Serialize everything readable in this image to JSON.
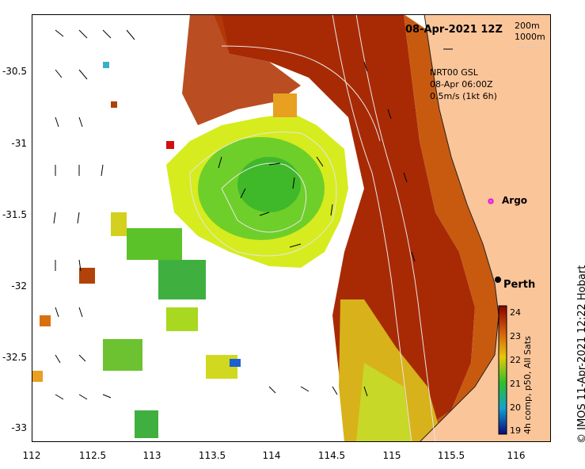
{
  "map": {
    "title": "08-Apr-2021 12Z",
    "depth_contours": [
      "200m",
      "1000m"
    ],
    "current_legend": {
      "line1": "NRT00 GSL",
      "line2": "08-Apr 06:00Z",
      "line3": "0.5m/s (1kt 6h)"
    },
    "latitude_ticks": [
      "-30.5",
      "-31",
      "-31.5",
      "-32",
      "-32.5",
      "-33"
    ],
    "longitude_ticks": [
      "112",
      "112.5",
      "113",
      "113.5",
      "114",
      "114.5",
      "115",
      "115.5",
      "116"
    ],
    "markers": {
      "argo": "Argo",
      "city": "Perth"
    },
    "colorbar": {
      "ticks": [
        "24",
        "23",
        "22",
        "21",
        "20",
        "19"
      ],
      "label": "4h comp, p50, All Sats"
    },
    "credit": "© IMOS 11-Apr-2021 12:22 Hobart",
    "colors": {
      "land": "#fbc59a",
      "warm": "#a31a00",
      "eddy": "#c8e820"
    }
  }
}
